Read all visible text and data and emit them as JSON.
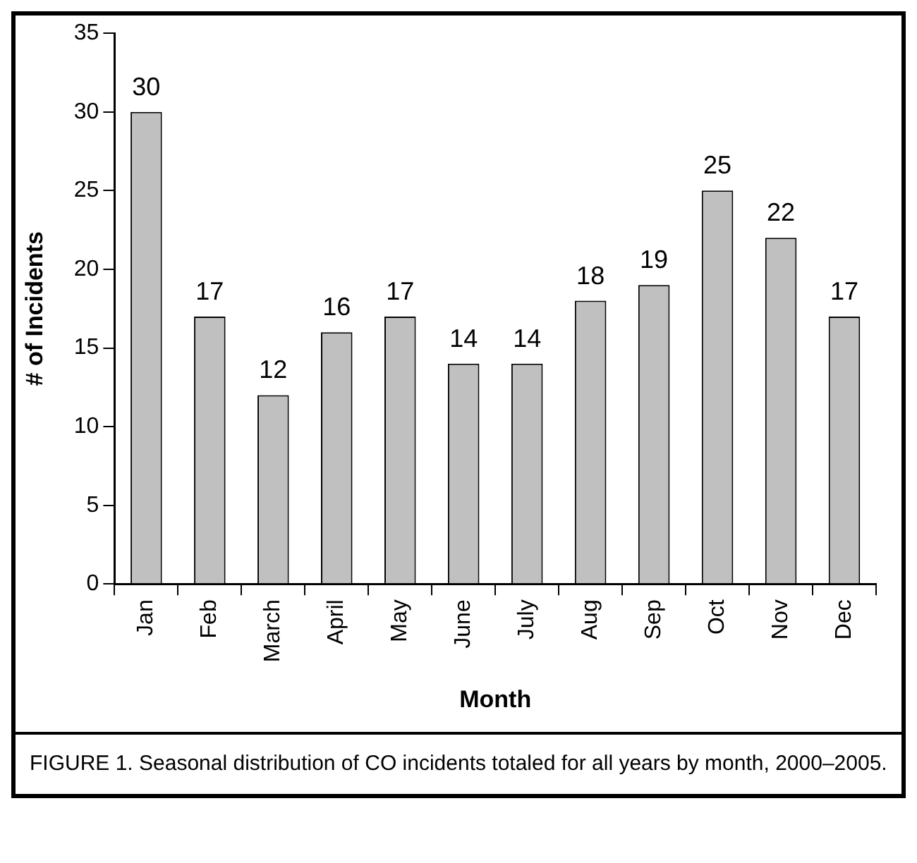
{
  "chart_data": {
    "type": "bar",
    "xlabel": "Month",
    "ylabel": "# of Incidents",
    "categories": [
      "Jan",
      "Feb",
      "March",
      "April",
      "May",
      "June",
      "July",
      "Aug",
      "Sep",
      "Oct",
      "Nov",
      "Dec"
    ],
    "values": [
      30,
      17,
      12,
      16,
      17,
      14,
      14,
      18,
      19,
      25,
      22,
      17
    ],
    "color": "#c0c0c0",
    "ylim": [
      0,
      35
    ],
    "yticks": [
      0,
      5,
      10,
      15,
      20,
      25,
      30,
      35
    ],
    "grid": false,
    "data_labels": true,
    "legend": false,
    "annotations": [
      "FIGURE 1.  Seasonal distribution of CO incidents totaled for all years by month, 2000–2005."
    ]
  }
}
